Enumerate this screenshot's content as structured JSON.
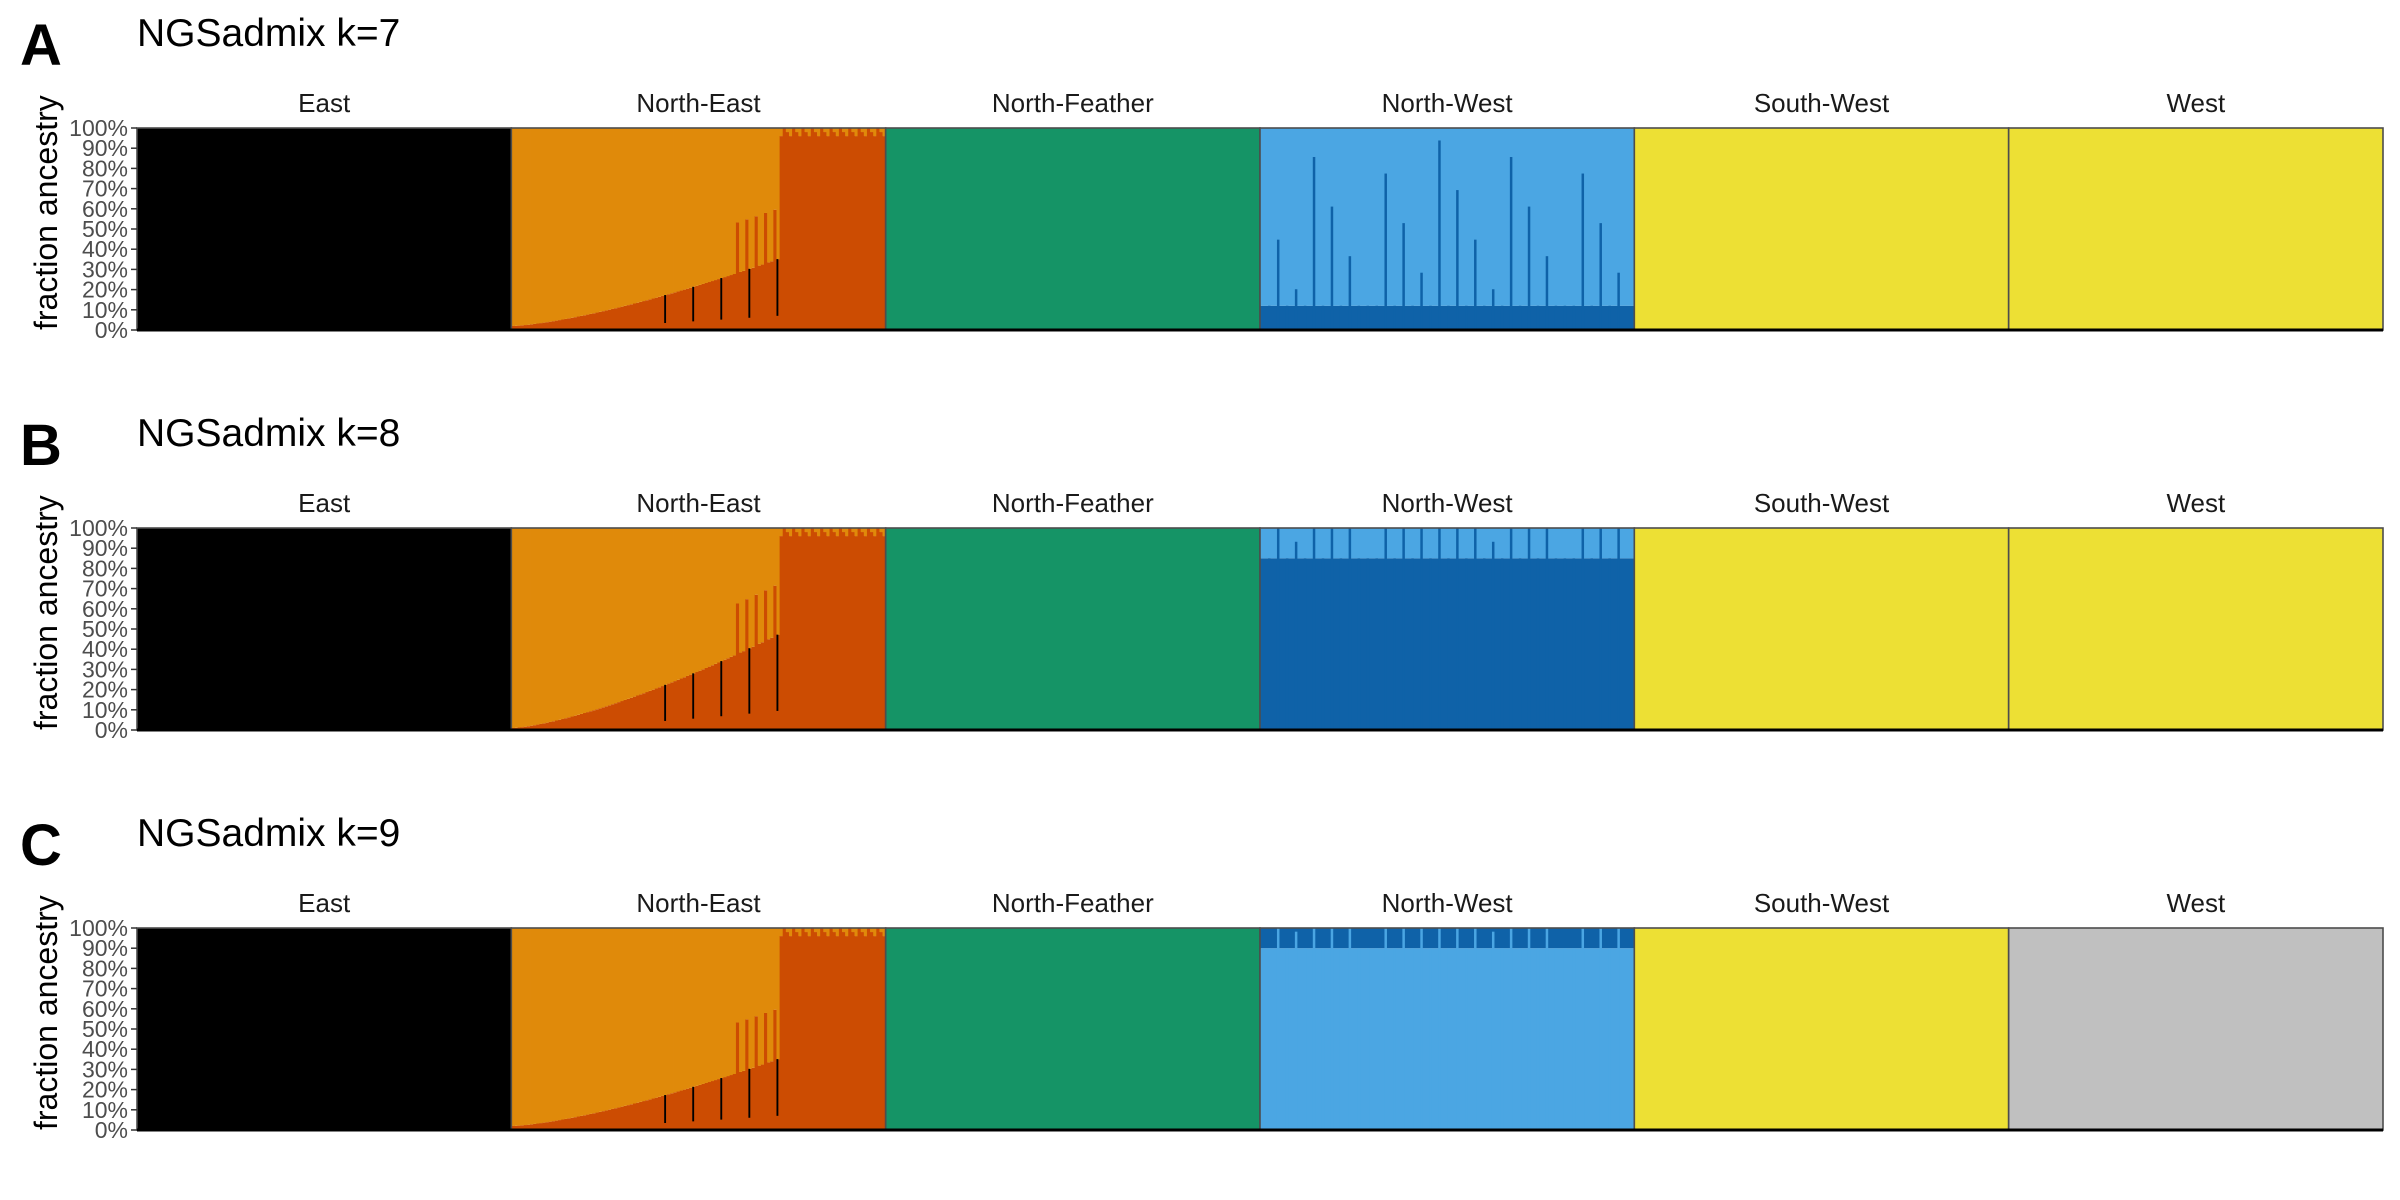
{
  "colors": {
    "black": "#000000",
    "orange": "#E08A0A",
    "vermillion": "#CC4C02",
    "green": "#159466",
    "skyblue": "#4BA6E3",
    "blue": "#0F62A8",
    "yellow": "#EDE034",
    "pink": "#CC6FA8",
    "grey": "#C0C0C0"
  },
  "chart_data": [
    {
      "type": "bar",
      "panel_letter": "A",
      "title": "NGSadmix k=7",
      "ylabel": "fraction ancestry",
      "yticks": [
        "0%",
        "10%",
        "20%",
        "30%",
        "40%",
        "50%",
        "60%",
        "70%",
        "80%",
        "90%",
        "100%"
      ],
      "ylim": [
        0,
        1
      ],
      "populations": [
        {
          "name": "East",
          "segments": [
            {
              "color": "black",
              "fraction": 1.0
            }
          ]
        },
        {
          "name": "North-East",
          "segments": [
            {
              "color": "black",
              "fraction": 0.04
            },
            {
              "color": "vermillion",
              "fraction": 0.38
            },
            {
              "color": "orange",
              "fraction": 0.58
            }
          ],
          "cline": {
            "lower": "vermillion",
            "upper": "orange",
            "from": 0.02,
            "to": 0.55
          }
        },
        {
          "name": "North-Feather",
          "segments": [
            {
              "color": "green",
              "fraction": 1.0
            }
          ]
        },
        {
          "name": "North-West",
          "segments": [
            {
              "color": "blue",
              "fraction": 0.12
            },
            {
              "color": "skyblue",
              "fraction": 0.88
            }
          ]
        },
        {
          "name": "South-West",
          "segments": [
            {
              "color": "yellow",
              "fraction": 1.0
            }
          ]
        },
        {
          "name": "West",
          "segments": [
            {
              "color": "yellow",
              "fraction": 1.0
            }
          ]
        }
      ]
    },
    {
      "type": "bar",
      "panel_letter": "B",
      "title": "NGSadmix k=8",
      "ylabel": "fraction ancestry",
      "yticks": [
        "0%",
        "10%",
        "20%",
        "30%",
        "40%",
        "50%",
        "60%",
        "70%",
        "80%",
        "90%",
        "100%"
      ],
      "ylim": [
        0,
        1
      ],
      "populations": [
        {
          "name": "East",
          "segments": [
            {
              "color": "black",
              "fraction": 1.0
            }
          ]
        },
        {
          "name": "North-East",
          "segments": [
            {
              "color": "vermillion",
              "fraction": 0.3
            },
            {
              "color": "pink",
              "fraction": 0.1
            },
            {
              "color": "orange",
              "fraction": 0.6
            }
          ],
          "cline": {
            "lower": "vermillion",
            "upper": "orange",
            "from": 0.01,
            "to": 0.75
          }
        },
        {
          "name": "North-Feather",
          "segments": [
            {
              "color": "green",
              "fraction": 1.0
            }
          ]
        },
        {
          "name": "North-West",
          "segments": [
            {
              "color": "blue",
              "fraction": 0.85
            },
            {
              "color": "skyblue",
              "fraction": 0.15
            }
          ]
        },
        {
          "name": "South-West",
          "segments": [
            {
              "color": "yellow",
              "fraction": 1.0
            }
          ]
        },
        {
          "name": "West",
          "segments": [
            {
              "color": "yellow",
              "fraction": 1.0
            }
          ]
        }
      ]
    },
    {
      "type": "bar",
      "panel_letter": "C",
      "title": "NGSadmix k=9",
      "ylabel": "fraction ancestry",
      "yticks": [
        "0%",
        "10%",
        "20%",
        "30%",
        "40%",
        "50%",
        "60%",
        "70%",
        "80%",
        "90%",
        "100%"
      ],
      "ylim": [
        0,
        1
      ],
      "populations": [
        {
          "name": "East",
          "segments": [
            {
              "color": "black",
              "fraction": 1.0
            }
          ]
        },
        {
          "name": "North-East",
          "segments": [
            {
              "color": "black",
              "fraction": 0.04
            },
            {
              "color": "vermillion",
              "fraction": 0.38
            },
            {
              "color": "orange",
              "fraction": 0.58
            }
          ],
          "cline": {
            "lower": "vermillion",
            "upper": "orange",
            "from": 0.02,
            "to": 0.55
          }
        },
        {
          "name": "North-Feather",
          "segments": [
            {
              "color": "green",
              "fraction": 1.0
            }
          ]
        },
        {
          "name": "North-West",
          "segments": [
            {
              "color": "skyblue",
              "fraction": 0.9
            },
            {
              "color": "blue",
              "fraction": 0.1
            }
          ]
        },
        {
          "name": "South-West",
          "segments": [
            {
              "color": "yellow",
              "fraction": 1.0
            }
          ]
        },
        {
          "name": "West",
          "segments": [
            {
              "color": "grey",
              "fraction": 1.0
            }
          ]
        }
      ]
    }
  ]
}
